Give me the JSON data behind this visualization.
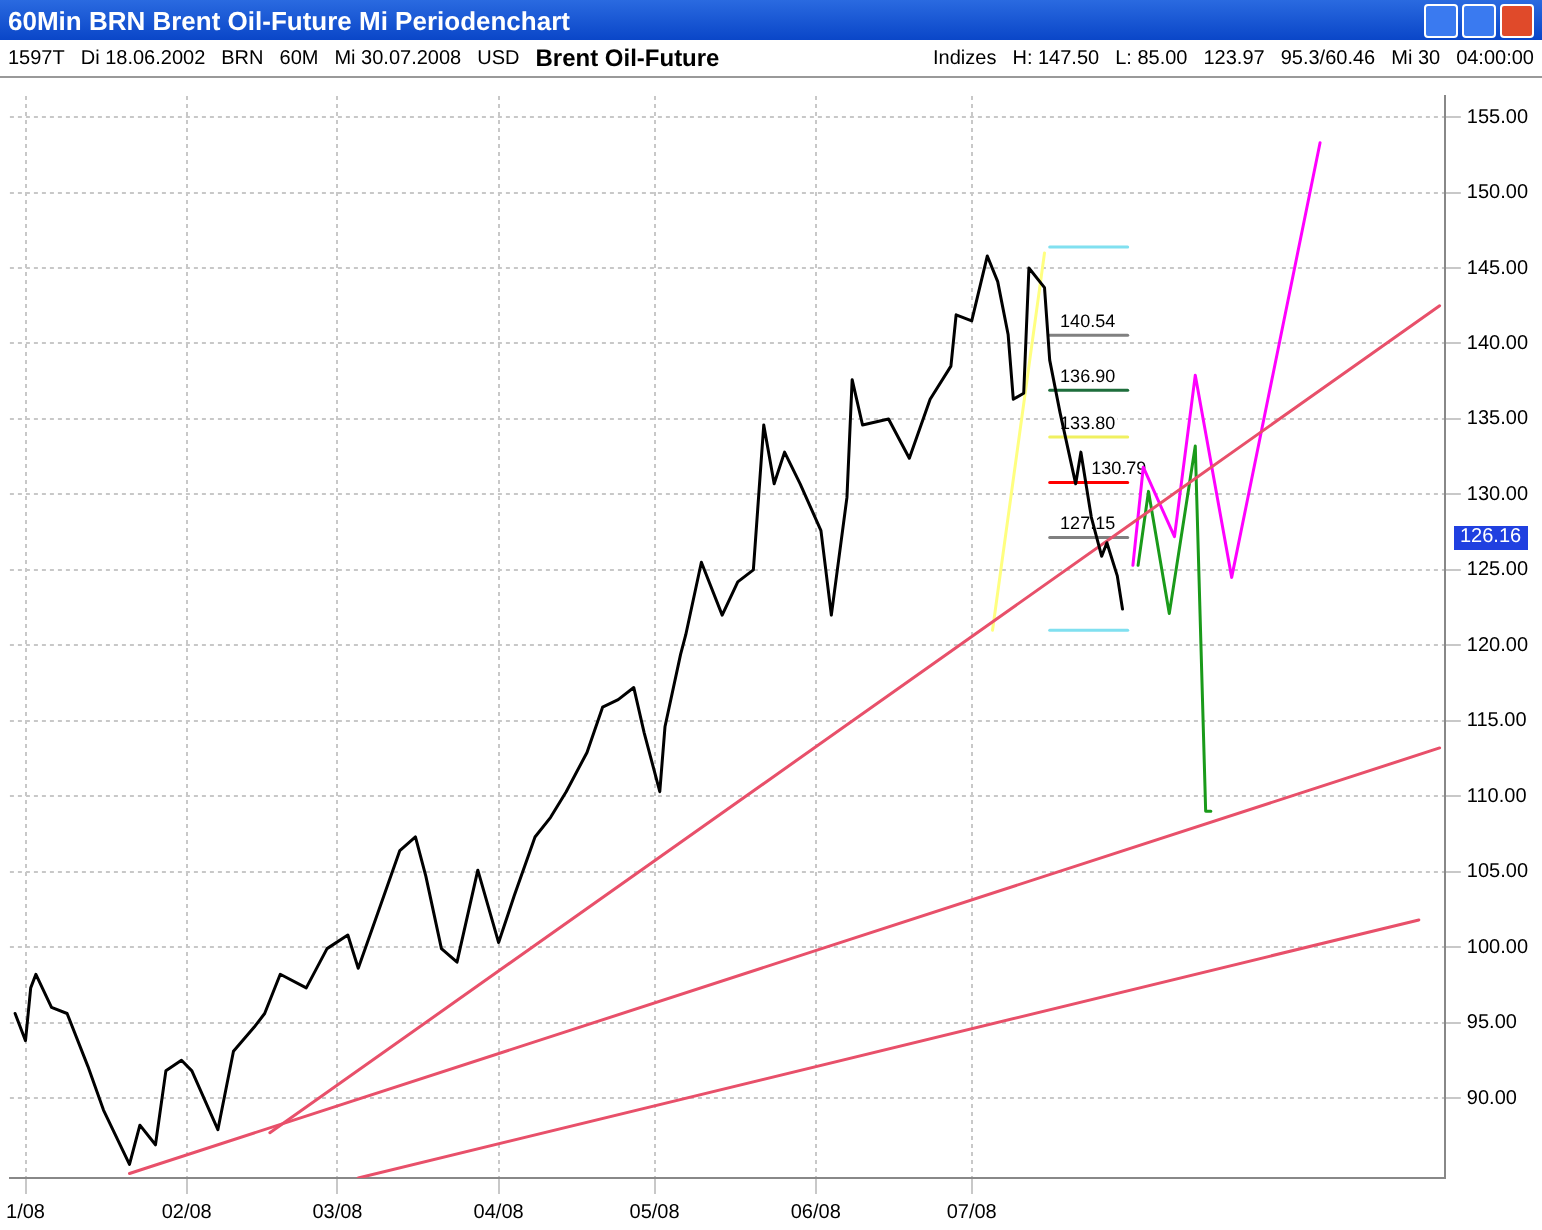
{
  "chart_data": {
    "type": "line",
    "title": "60Min BRN Brent Oil-Future Mi Periodenchart",
    "subtitle": "Brent Oil-Future",
    "xlim": [
      "2007-12-29",
      "2008-09-30"
    ],
    "xticks": [
      {
        "value": "2008-01-01",
        "label": "1/08"
      },
      {
        "value": "2008-02-01",
        "label": "02/08"
      },
      {
        "value": "2008-03-01",
        "label": "03/08"
      },
      {
        "value": "2008-04-01",
        "label": "04/08"
      },
      {
        "value": "2008-05-01",
        "label": "05/08"
      },
      {
        "value": "2008-06-01",
        "label": "06/08"
      },
      {
        "value": "2008-07-01",
        "label": "07/08"
      }
    ],
    "ylim": [
      84.7,
      156.4
    ],
    "yticks": [
      {
        "value": 90,
        "label": "90.00"
      },
      {
        "value": 95,
        "label": "95.00"
      },
      {
        "value": 100,
        "label": "100.00"
      },
      {
        "value": 105,
        "label": "105.00"
      },
      {
        "value": 110,
        "label": "110.00"
      },
      {
        "value": 115,
        "label": "115.00"
      },
      {
        "value": 120,
        "label": "120.00"
      },
      {
        "value": 125,
        "label": "125.00"
      },
      {
        "value": 130,
        "label": "130.00"
      },
      {
        "value": 135,
        "label": "135.00"
      },
      {
        "value": 140,
        "label": "140.00"
      },
      {
        "value": 145,
        "label": "145.00"
      },
      {
        "value": 150,
        "label": "150.00"
      },
      {
        "value": 155,
        "label": "155.00"
      }
    ],
    "grid": true,
    "legend": false,
    "series": [
      {
        "color": "#000000",
        "x": [
          "2007-12-30",
          "2008-01-01",
          "2008-01-02",
          "2008-01-03",
          "2008-01-06",
          "2008-01-09",
          "2008-01-13",
          "2008-01-16",
          "2008-01-21",
          "2008-01-23",
          "2008-01-26",
          "2008-01-28",
          "2008-01-31",
          "2008-02-02",
          "2008-02-07",
          "2008-02-10",
          "2008-02-14",
          "2008-02-16",
          "2008-02-19",
          "2008-02-24",
          "2008-02-28",
          "2008-03-03",
          "2008-03-05",
          "2008-03-09",
          "2008-03-13",
          "2008-03-16",
          "2008-03-18",
          "2008-03-21",
          "2008-03-24",
          "2008-03-28",
          "2008-04-01",
          "2008-04-04",
          "2008-04-08",
          "2008-04-11",
          "2008-04-14",
          "2008-04-18",
          "2008-04-21",
          "2008-04-24",
          "2008-04-27",
          "2008-04-29",
          "2008-05-02",
          "2008-05-03",
          "2008-05-06",
          "2008-05-07",
          "2008-05-10",
          "2008-05-14",
          "2008-05-17",
          "2008-05-20",
          "2008-05-22",
          "2008-05-24",
          "2008-05-26",
          "2008-05-29",
          "2008-06-02",
          "2008-06-04",
          "2008-06-07",
          "2008-06-08",
          "2008-06-10",
          "2008-06-15",
          "2008-06-19",
          "2008-06-23",
          "2008-06-27",
          "2008-06-28",
          "2008-07-01",
          "2008-07-04",
          "2008-07-06",
          "2008-07-08",
          "2008-07-09",
          "2008-07-11",
          "2008-07-12",
          "2008-07-15",
          "2008-07-16",
          "2008-07-18",
          "2008-07-21",
          "2008-07-22",
          "2008-07-24",
          "2008-07-26",
          "2008-07-27",
          "2008-07-29",
          "2008-07-30"
        ],
        "values": [
          95.6,
          93.8,
          97.3,
          98.2,
          96.0,
          95.6,
          92.1,
          89.2,
          85.6,
          88.2,
          86.9,
          91.8,
          92.5,
          91.8,
          87.9,
          93.1,
          94.7,
          95.6,
          98.2,
          97.3,
          99.9,
          100.8,
          98.6,
          102.5,
          106.4,
          107.3,
          104.7,
          99.9,
          99.0,
          105.1,
          100.3,
          103.4,
          107.3,
          108.6,
          110.3,
          112.9,
          115.9,
          116.4,
          117.2,
          114.2,
          110.3,
          114.6,
          119.4,
          120.7,
          125.5,
          122.0,
          124.2,
          125.0,
          134.6,
          130.7,
          132.8,
          130.7,
          127.6,
          122.0,
          129.8,
          137.6,
          134.6,
          135.0,
          132.4,
          136.3,
          138.5,
          141.9,
          141.5,
          145.8,
          144.1,
          140.6,
          136.3,
          136.7,
          145.0,
          143.7,
          138.9,
          135.4,
          130.7,
          132.8,
          128.5,
          125.9,
          126.8,
          124.6,
          122.4
        ]
      },
      {
        "type": "line",
        "color": "#e8506a",
        "x": [
          "2008-02-17",
          "2008-09-29"
        ],
        "values": [
          87.7,
          142.5
        ]
      },
      {
        "type": "line",
        "color": "#e8506a",
        "x": [
          "2008-01-21",
          "2008-09-29"
        ],
        "values": [
          85.0,
          113.2
        ]
      },
      {
        "type": "line",
        "color": "#e8506a",
        "x": [
          "2008-03-05",
          "2008-09-25"
        ],
        "values": [
          84.7,
          101.8
        ]
      },
      {
        "type": "line",
        "color": "#ffff80",
        "x": [
          "2008-07-05",
          "2008-07-15"
        ],
        "values": [
          121.0,
          146.0
        ]
      },
      {
        "type": "line",
        "color": "#80e0f0",
        "x": [
          "2008-07-16",
          "2008-07-31"
        ],
        "values": [
          146.4,
          146.4
        ]
      },
      {
        "type": "line",
        "color": "#808080",
        "x": [
          "2008-07-16",
          "2008-07-31"
        ],
        "values": [
          140.54,
          140.54
        ]
      },
      {
        "type": "line",
        "color": "#1e6e3c",
        "x": [
          "2008-07-16",
          "2008-07-31"
        ],
        "values": [
          136.9,
          136.9
        ]
      },
      {
        "type": "line",
        "color": "#f0f060",
        "x": [
          "2008-07-16",
          "2008-07-31"
        ],
        "values": [
          133.8,
          133.8
        ]
      },
      {
        "type": "line",
        "color": "#ff0000",
        "x": [
          "2008-07-16",
          "2008-07-31"
        ],
        "values": [
          130.79,
          130.79
        ]
      },
      {
        "type": "line",
        "color": "#808080",
        "x": [
          "2008-07-16",
          "2008-07-31"
        ],
        "values": [
          127.15,
          127.15
        ]
      },
      {
        "type": "line",
        "color": "#80e0f0",
        "x": [
          "2008-07-16",
          "2008-07-31"
        ],
        "values": [
          121.0,
          121.0
        ]
      },
      {
        "type": "line",
        "color": "#ff00ff",
        "x": [
          "2008-08-01",
          "2008-08-03",
          "2008-08-09",
          "2008-08-13",
          "2008-08-20",
          "2008-09-06"
        ],
        "values": [
          125.3,
          131.8,
          127.2,
          137.9,
          124.5,
          153.3
        ]
      },
      {
        "type": "line",
        "color": "#1a9a1a",
        "x": [
          "2008-08-02",
          "2008-08-04",
          "2008-08-08",
          "2008-08-13",
          "2008-08-15",
          "2008-08-16"
        ],
        "values": [
          125.3,
          130.2,
          122.1,
          133.2,
          109.0,
          109.0
        ]
      }
    ],
    "annotations": [
      {
        "text": "140.54",
        "x": "2008-07-18",
        "y": 140.54
      },
      {
        "text": "136.90",
        "x": "2008-07-18",
        "y": 136.9
      },
      {
        "text": "133.80",
        "x": "2008-07-18",
        "y": 133.8
      },
      {
        "text": "130.79",
        "x": "2008-07-24",
        "y": 130.79
      },
      {
        "text": "127.15",
        "x": "2008-07-18",
        "y": 127.15
      },
      "126.16",
      "1597T",
      "Di 18.06.2002",
      "BRN",
      "60M",
      "Mi 30.07.2008",
      "USD",
      "Indizes",
      "H: 147.50",
      "L: 85.00",
      "123.97",
      "95.3/60.46",
      "Mi 30",
      "04:00:00"
    ]
  }
}
